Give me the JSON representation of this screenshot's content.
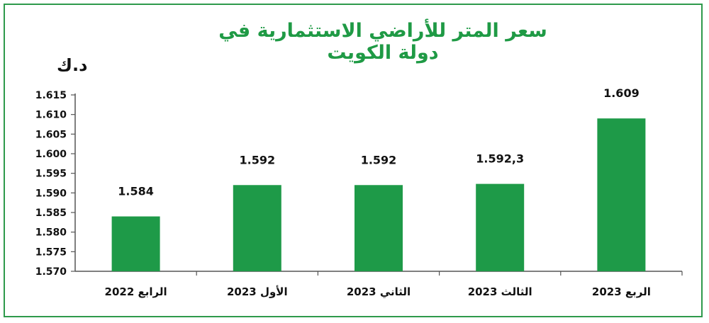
{
  "chart_data": {
    "type": "bar",
    "title": "سعر المتر للأراضي الاستثمارية في دولة الكويت",
    "ylabel": "د.ك",
    "categories": [
      "الرابع 2022",
      "الأول 2023",
      "الثاني 2023",
      "الثالث 2023",
      "الربع 2023"
    ],
    "values": [
      1.584,
      1.592,
      1.592,
      1.5923,
      1.609
    ],
    "data_labels": [
      "1.584",
      "1.592",
      "1.592",
      "1.592,3",
      "1.609"
    ],
    "ylim": [
      1.57,
      1.615
    ],
    "yticks": [
      "1.615",
      "1.610",
      "1.605",
      "1.600",
      "1.595",
      "1.590",
      "1.585",
      "1.580",
      "1.575",
      "1.570"
    ],
    "grid": false,
    "bar_color": "#1e9a48",
    "frame_color": "#2e9a4b",
    "title_color": "#1f9a45"
  }
}
